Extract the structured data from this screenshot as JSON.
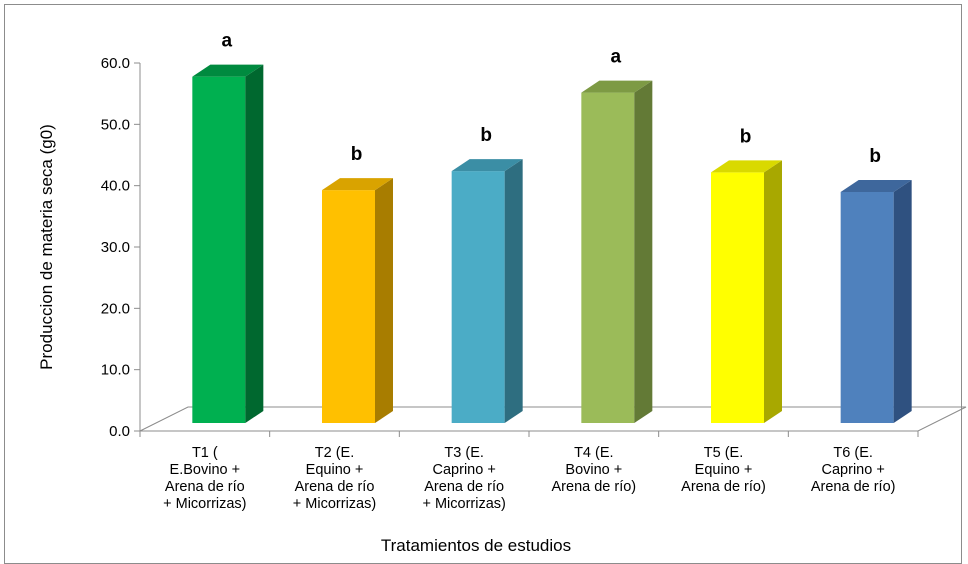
{
  "chart_data": {
    "type": "bar",
    "title": "",
    "xlabel": "Tratamientos de estudios",
    "ylabel": "Produccion de materia seca (g0)",
    "ylim": [
      0,
      60
    ],
    "y_ticks": [
      "0.0",
      "10.0",
      "20.0",
      "30.0",
      "40.0",
      "50.0",
      "60.0"
    ],
    "grid": false,
    "legend": "none",
    "categories": [
      [
        "T1 (",
        "E.Bovino +",
        "Arena de río",
        "+ Micorrizas)"
      ],
      [
        "T2 (E.",
        "Equino +",
        "Arena de río",
        "+ Micorrizas)"
      ],
      [
        "T3 (E.",
        "Caprino +",
        "Arena de río",
        "+ Micorrizas)"
      ],
      [
        "T4 (E.",
        "Bovino +",
        "Arena de río)"
      ],
      [
        "T5 (E.",
        "Equino +",
        "Arena de río)"
      ],
      [
        "T6 (E.",
        "Caprino  +",
        "Arena de río)"
      ]
    ],
    "values": [
      58.1,
      39.6,
      42.7,
      55.5,
      42.5,
      39.3
    ],
    "significance": [
      "a",
      "b",
      "b",
      "a",
      "b",
      "b"
    ],
    "colors": [
      {
        "front": "#00b050",
        "side": "#00682f",
        "top": "#008a3f"
      },
      {
        "front": "#ffc000",
        "side": "#a87d00",
        "top": "#d9a300"
      },
      {
        "front": "#4bacc6",
        "side": "#2e6e80",
        "top": "#3b8ea5"
      },
      {
        "front": "#9bbb59",
        "side": "#637a36",
        "top": "#7d9a44"
      },
      {
        "front": "#ffff00",
        "side": "#a8a800",
        "top": "#d9d900"
      },
      {
        "front": "#4f81bd",
        "side": "#2f5180",
        "top": "#3e679c"
      }
    ]
  }
}
